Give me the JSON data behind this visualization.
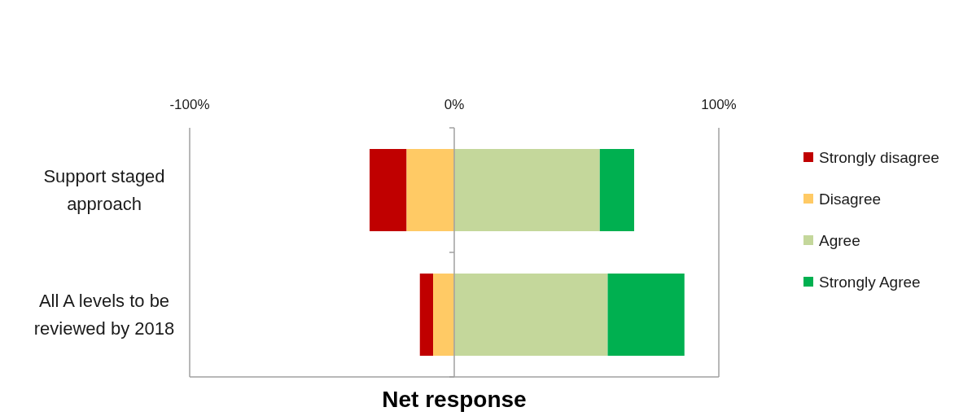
{
  "chart_data": {
    "type": "bar",
    "orientation": "horizontal",
    "xlabel": "Net response",
    "categories": [
      "Support staged approach",
      "All A levels to be reviewed by 2018"
    ],
    "series": [
      {
        "name": "Strongly disagree",
        "color": "#c00000",
        "values": [
          -14,
          -5
        ],
        "base": [
          -18,
          -8
        ]
      },
      {
        "name": "Disagree",
        "color": "#ffca65",
        "values": [
          -18,
          -8
        ],
        "base": [
          0,
          0
        ]
      },
      {
        "name": "Agree",
        "color": "#c4d79b",
        "values": [
          55,
          58
        ],
        "base": [
          0,
          0
        ]
      },
      {
        "name": "Strongly Agree",
        "color": "#00b050",
        "values": [
          13,
          29
        ],
        "base": [
          55,
          58
        ]
      }
    ],
    "xlim": [
      -100,
      100
    ],
    "xticks": [
      {
        "value": -100,
        "label": "-100%"
      },
      {
        "value": 0,
        "label": "0%"
      },
      {
        "value": 100,
        "label": "100%"
      }
    ],
    "legend": "right"
  }
}
